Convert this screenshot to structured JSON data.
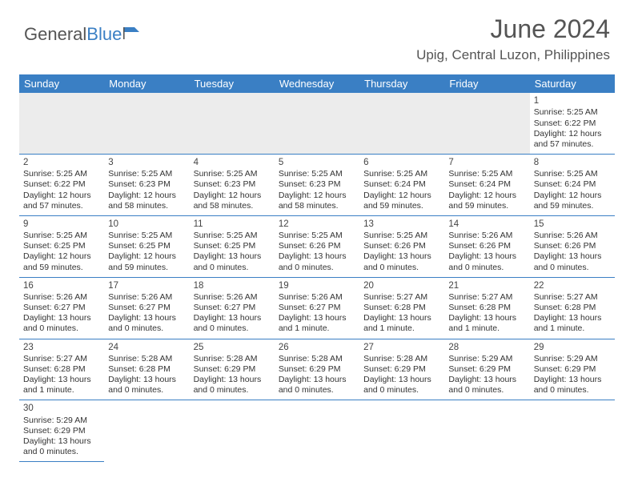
{
  "brand": {
    "part1": "General",
    "part2": "Blue"
  },
  "title": "June 2024",
  "location": "Upig, Central Luzon, Philippines",
  "colors": {
    "header_bg": "#3a7fc4",
    "header_fg": "#ffffff",
    "rule": "#3a7fc4",
    "text": "#333333",
    "muted_bg": "#ececec"
  },
  "dayHeaders": [
    "Sunday",
    "Monday",
    "Tuesday",
    "Wednesday",
    "Thursday",
    "Friday",
    "Saturday"
  ],
  "weeks": [
    [
      null,
      null,
      null,
      null,
      null,
      null,
      {
        "d": "1",
        "sr": "Sunrise: 5:25 AM",
        "ss": "Sunset: 6:22 PM",
        "dl": "Daylight: 12 hours and 57 minutes."
      }
    ],
    [
      {
        "d": "2",
        "sr": "Sunrise: 5:25 AM",
        "ss": "Sunset: 6:22 PM",
        "dl": "Daylight: 12 hours and 57 minutes."
      },
      {
        "d": "3",
        "sr": "Sunrise: 5:25 AM",
        "ss": "Sunset: 6:23 PM",
        "dl": "Daylight: 12 hours and 58 minutes."
      },
      {
        "d": "4",
        "sr": "Sunrise: 5:25 AM",
        "ss": "Sunset: 6:23 PM",
        "dl": "Daylight: 12 hours and 58 minutes."
      },
      {
        "d": "5",
        "sr": "Sunrise: 5:25 AM",
        "ss": "Sunset: 6:23 PM",
        "dl": "Daylight: 12 hours and 58 minutes."
      },
      {
        "d": "6",
        "sr": "Sunrise: 5:25 AM",
        "ss": "Sunset: 6:24 PM",
        "dl": "Daylight: 12 hours and 59 minutes."
      },
      {
        "d": "7",
        "sr": "Sunrise: 5:25 AM",
        "ss": "Sunset: 6:24 PM",
        "dl": "Daylight: 12 hours and 59 minutes."
      },
      {
        "d": "8",
        "sr": "Sunrise: 5:25 AM",
        "ss": "Sunset: 6:24 PM",
        "dl": "Daylight: 12 hours and 59 minutes."
      }
    ],
    [
      {
        "d": "9",
        "sr": "Sunrise: 5:25 AM",
        "ss": "Sunset: 6:25 PM",
        "dl": "Daylight: 12 hours and 59 minutes."
      },
      {
        "d": "10",
        "sr": "Sunrise: 5:25 AM",
        "ss": "Sunset: 6:25 PM",
        "dl": "Daylight: 12 hours and 59 minutes."
      },
      {
        "d": "11",
        "sr": "Sunrise: 5:25 AM",
        "ss": "Sunset: 6:25 PM",
        "dl": "Daylight: 13 hours and 0 minutes."
      },
      {
        "d": "12",
        "sr": "Sunrise: 5:25 AM",
        "ss": "Sunset: 6:26 PM",
        "dl": "Daylight: 13 hours and 0 minutes."
      },
      {
        "d": "13",
        "sr": "Sunrise: 5:25 AM",
        "ss": "Sunset: 6:26 PM",
        "dl": "Daylight: 13 hours and 0 minutes."
      },
      {
        "d": "14",
        "sr": "Sunrise: 5:26 AM",
        "ss": "Sunset: 6:26 PM",
        "dl": "Daylight: 13 hours and 0 minutes."
      },
      {
        "d": "15",
        "sr": "Sunrise: 5:26 AM",
        "ss": "Sunset: 6:26 PM",
        "dl": "Daylight: 13 hours and 0 minutes."
      }
    ],
    [
      {
        "d": "16",
        "sr": "Sunrise: 5:26 AM",
        "ss": "Sunset: 6:27 PM",
        "dl": "Daylight: 13 hours and 0 minutes."
      },
      {
        "d": "17",
        "sr": "Sunrise: 5:26 AM",
        "ss": "Sunset: 6:27 PM",
        "dl": "Daylight: 13 hours and 0 minutes."
      },
      {
        "d": "18",
        "sr": "Sunrise: 5:26 AM",
        "ss": "Sunset: 6:27 PM",
        "dl": "Daylight: 13 hours and 0 minutes."
      },
      {
        "d": "19",
        "sr": "Sunrise: 5:26 AM",
        "ss": "Sunset: 6:27 PM",
        "dl": "Daylight: 13 hours and 1 minute."
      },
      {
        "d": "20",
        "sr": "Sunrise: 5:27 AM",
        "ss": "Sunset: 6:28 PM",
        "dl": "Daylight: 13 hours and 1 minute."
      },
      {
        "d": "21",
        "sr": "Sunrise: 5:27 AM",
        "ss": "Sunset: 6:28 PM",
        "dl": "Daylight: 13 hours and 1 minute."
      },
      {
        "d": "22",
        "sr": "Sunrise: 5:27 AM",
        "ss": "Sunset: 6:28 PM",
        "dl": "Daylight: 13 hours and 1 minute."
      }
    ],
    [
      {
        "d": "23",
        "sr": "Sunrise: 5:27 AM",
        "ss": "Sunset: 6:28 PM",
        "dl": "Daylight: 13 hours and 1 minute."
      },
      {
        "d": "24",
        "sr": "Sunrise: 5:28 AM",
        "ss": "Sunset: 6:28 PM",
        "dl": "Daylight: 13 hours and 0 minutes."
      },
      {
        "d": "25",
        "sr": "Sunrise: 5:28 AM",
        "ss": "Sunset: 6:29 PM",
        "dl": "Daylight: 13 hours and 0 minutes."
      },
      {
        "d": "26",
        "sr": "Sunrise: 5:28 AM",
        "ss": "Sunset: 6:29 PM",
        "dl": "Daylight: 13 hours and 0 minutes."
      },
      {
        "d": "27",
        "sr": "Sunrise: 5:28 AM",
        "ss": "Sunset: 6:29 PM",
        "dl": "Daylight: 13 hours and 0 minutes."
      },
      {
        "d": "28",
        "sr": "Sunrise: 5:29 AM",
        "ss": "Sunset: 6:29 PM",
        "dl": "Daylight: 13 hours and 0 minutes."
      },
      {
        "d": "29",
        "sr": "Sunrise: 5:29 AM",
        "ss": "Sunset: 6:29 PM",
        "dl": "Daylight: 13 hours and 0 minutes."
      }
    ],
    [
      {
        "d": "30",
        "sr": "Sunrise: 5:29 AM",
        "ss": "Sunset: 6:29 PM",
        "dl": "Daylight: 13 hours and 0 minutes."
      },
      null,
      null,
      null,
      null,
      null,
      null
    ]
  ]
}
